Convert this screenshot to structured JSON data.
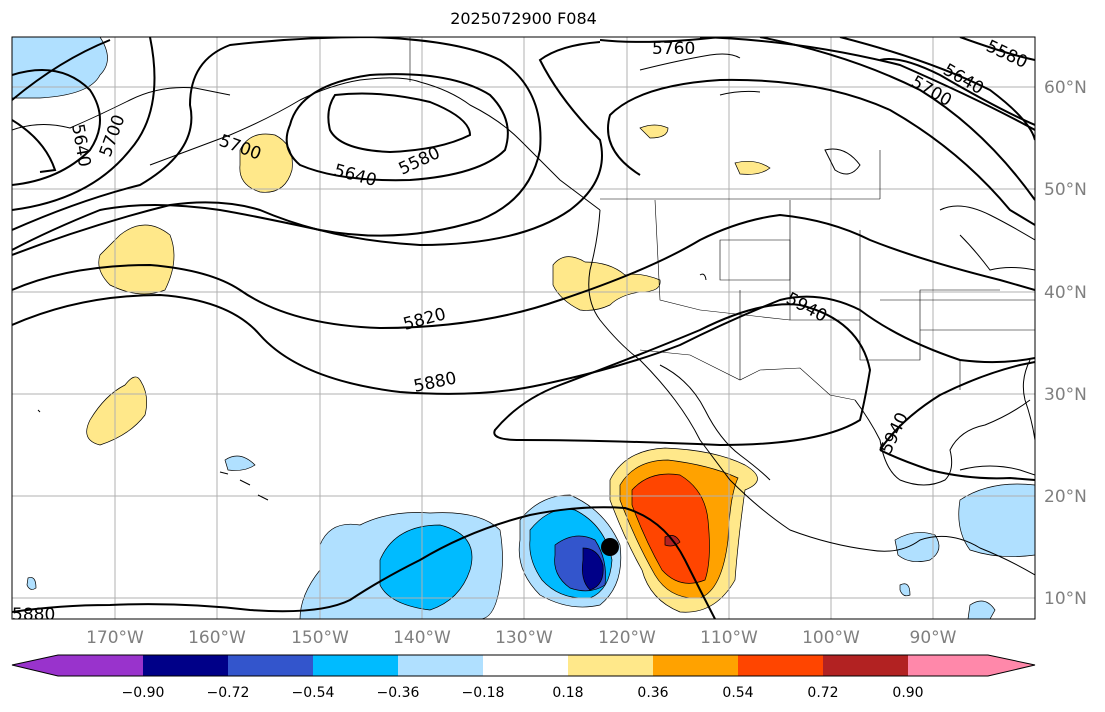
{
  "title": "2025072900 F084",
  "map": {
    "lon_labels": [
      "170°W",
      "160°W",
      "150°W",
      "140°W",
      "130°W",
      "120°W",
      "110°W",
      "100°W",
      "90°W"
    ],
    "lat_labels": [
      "60°N",
      "50°N",
      "40°N",
      "30°N",
      "20°N",
      "10°N"
    ],
    "contour_labels": [
      "5760",
      "5580",
      "5640",
      "5700",
      "5640",
      "5700",
      "5580",
      "5640",
      "5700",
      "5820",
      "5880",
      "5940",
      "5940",
      "5880"
    ],
    "marker": "storm-center"
  },
  "colorbar": {
    "tick_labels": [
      "−0.90",
      "−0.72",
      "−0.54",
      "−0.36",
      "−0.18",
      "0.18",
      "0.36",
      "0.54",
      "0.72",
      "0.90"
    ],
    "colors": [
      "#9933cc",
      "#000088",
      "#3355cc",
      "#00bbff",
      "#b0e0ff",
      "#ffffff",
      "#ffe88a",
      "#ffa200",
      "#ff4500",
      "#b22222",
      "#ff88aa"
    ]
  }
}
